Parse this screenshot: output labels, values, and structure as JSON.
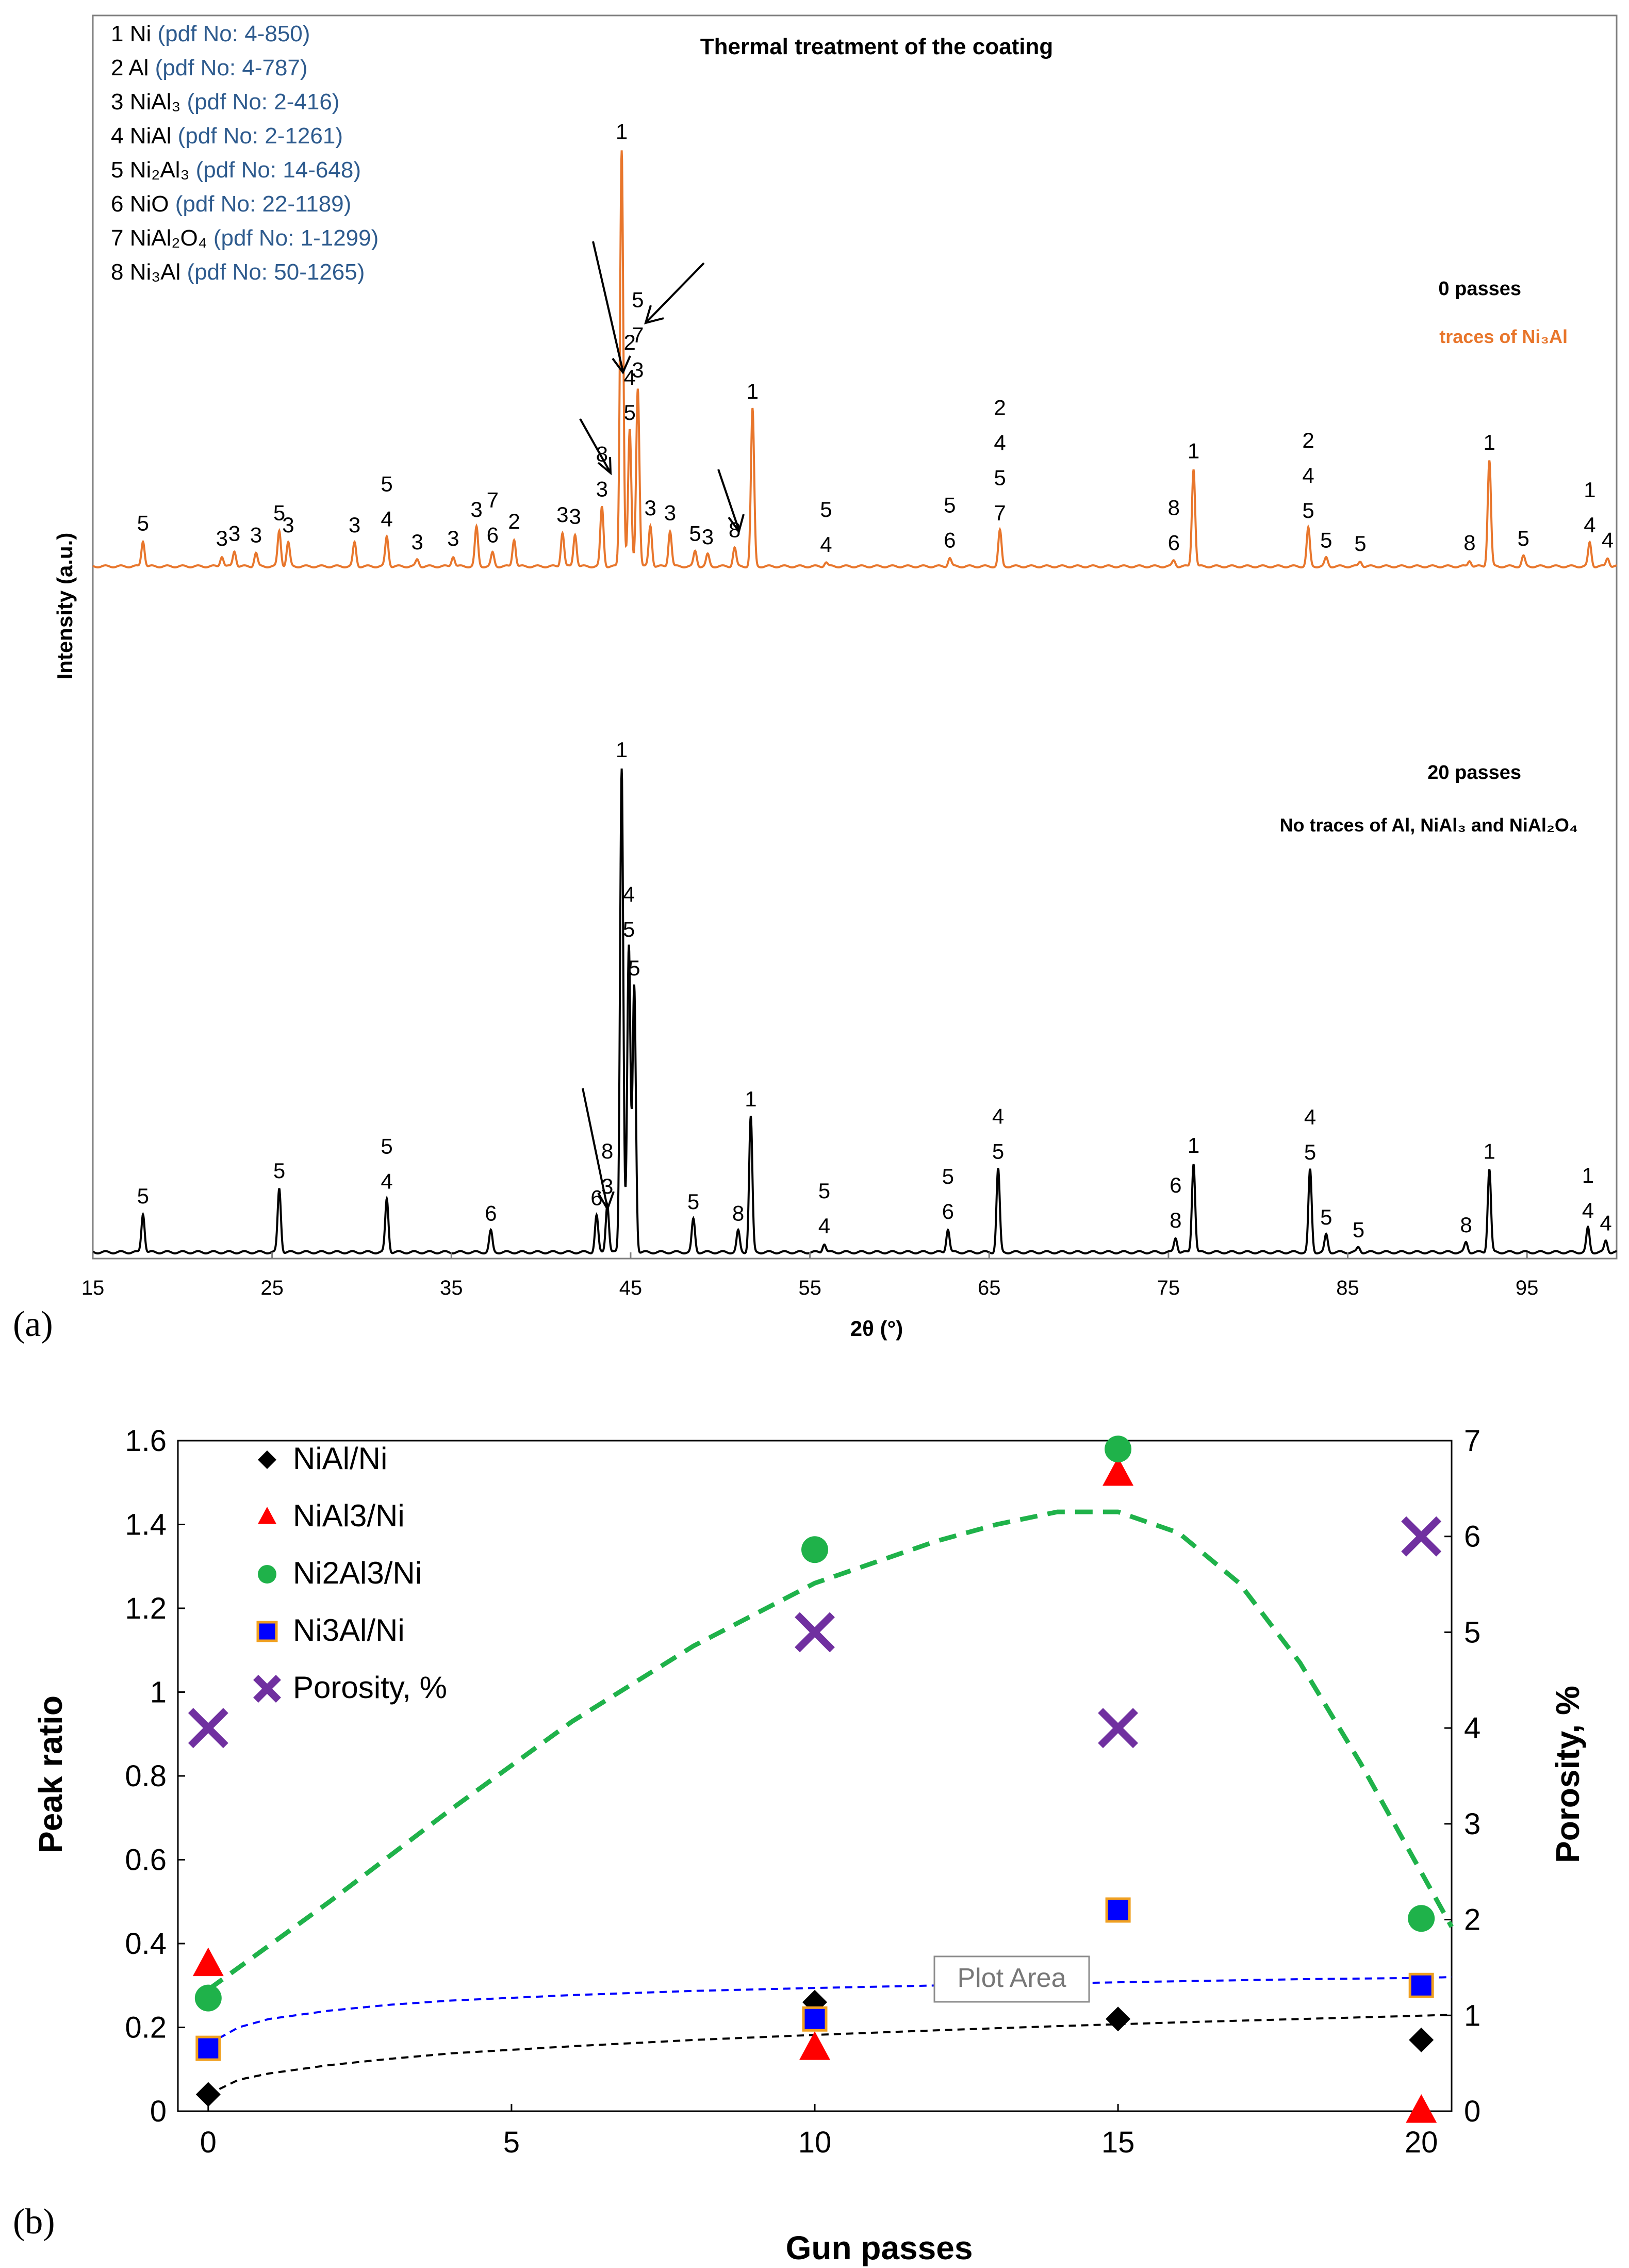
{
  "panel_a": {
    "label": "(a)",
    "title": "Thermal treatment of the coating",
    "xlabel": "2θ (°)",
    "ylabel": "Intensity (a.u.)",
    "xticks": [
      "15",
      "25",
      "35",
      "45",
      "55",
      "65",
      "75",
      "85",
      "95"
    ],
    "legend": [
      {
        "num": "1",
        "phase": "Ni",
        "pdf": "(pdf No: 4-850)"
      },
      {
        "num": "2",
        "phase": "Al",
        "pdf": "(pdf No: 4-787)"
      },
      {
        "num": "3",
        "phase": "NiAl₃",
        "pdf": "(pdf No: 2-416)"
      },
      {
        "num": "4",
        "phase": "NiAl",
        "pdf": "(pdf No: 2-1261)"
      },
      {
        "num": "5",
        "phase": "Ni₂Al₃",
        "pdf": "(pdf No: 14-648)"
      },
      {
        "num": "6",
        "phase": "NiO",
        "pdf": "(pdf No: 22-1189)"
      },
      {
        "num": "7",
        "phase": "NiAl₂O₄",
        "pdf": "(pdf No: 1-1299)"
      },
      {
        "num": "8",
        "phase": "Ni₃Al",
        "pdf": "(pdf No: 50-1265)"
      }
    ],
    "pattern0_label": "0 passes",
    "pattern0_note": "traces of  Ni₃Al",
    "pattern20_label": "20 passes",
    "pattern20_note": "No traces of Al, NiAl₃ and NiAl₂O₄"
  },
  "panel_b": {
    "label": "(b)",
    "tooltip": "Plot Area"
  },
  "colors": {
    "orange": "#e8762c",
    "black": "#000000",
    "legend_blue": "#2e5b8e",
    "green": "#1fb24a",
    "red": "#ff0000",
    "blue": "#0000ff",
    "purple": "#7030a0"
  },
  "chart_data": [
    {
      "type": "line",
      "title": "Thermal treatment of the coating",
      "xlabel": "2θ (°)",
      "ylabel": "Intensity (a.u.)",
      "xlim": [
        15,
        100
      ],
      "series": [
        {
          "name": "0 passes",
          "color": "#e8762c",
          "peaks": [
            {
              "x": 17.8,
              "h": 0.3,
              "label": "5"
            },
            {
              "x": 22.2,
              "h": 0.12,
              "label": "3"
            },
            {
              "x": 22.9,
              "h": 0.18,
              "label": "3"
            },
            {
              "x": 24.1,
              "h": 0.16,
              "label": "3"
            },
            {
              "x": 25.4,
              "h": 0.42,
              "label": "5"
            },
            {
              "x": 25.9,
              "h": 0.28,
              "label": "3"
            },
            {
              "x": 29.6,
              "h": 0.28,
              "label": "3"
            },
            {
              "x": 31.4,
              "h": 0.35,
              "label": "5 4"
            },
            {
              "x": 33.1,
              "h": 0.08,
              "label": "3"
            },
            {
              "x": 35.1,
              "h": 0.12,
              "label": "3"
            },
            {
              "x": 36.4,
              "h": 0.46,
              "label": "3"
            },
            {
              "x": 37.3,
              "h": 0.16,
              "label": "7 6"
            },
            {
              "x": 38.5,
              "h": 0.32,
              "label": "2"
            },
            {
              "x": 41.2,
              "h": 0.4,
              "label": "3"
            },
            {
              "x": 41.9,
              "h": 0.38,
              "label": "3"
            },
            {
              "x": 43.4,
              "h": 0.7,
              "label": "8 3"
            },
            {
              "x": 44.5,
              "h": 4.9,
              "label": "1"
            },
            {
              "x": 44.95,
              "h": 1.6,
              "label": "2 4 5"
            },
            {
              "x": 45.4,
              "h": 2.1,
              "label": "5 7 3"
            },
            {
              "x": 46.1,
              "h": 0.48,
              "label": "3"
            },
            {
              "x": 47.2,
              "h": 0.42,
              "label": "3"
            },
            {
              "x": 48.6,
              "h": 0.18,
              "label": "5"
            },
            {
              "x": 49.3,
              "h": 0.14,
              "label": "3"
            },
            {
              "x": 50.8,
              "h": 0.22,
              "label": "8"
            },
            {
              "x": 51.8,
              "h": 1.85,
              "label": "1"
            },
            {
              "x": 55.9,
              "h": 0.05,
              "label": "5 4"
            },
            {
              "x": 62.8,
              "h": 0.1,
              "label": "5 6"
            },
            {
              "x": 65.6,
              "h": 0.42,
              "label": "2 4 5 7"
            },
            {
              "x": 75.3,
              "h": 0.07,
              "label": "8 6"
            },
            {
              "x": 76.4,
              "h": 1.15,
              "label": "1"
            },
            {
              "x": 82.8,
              "h": 0.45,
              "label": "2 4 5"
            },
            {
              "x": 83.8,
              "h": 0.1,
              "label": "5"
            },
            {
              "x": 85.7,
              "h": 0.06,
              "label": "5"
            },
            {
              "x": 91.8,
              "h": 0.07,
              "label": "8"
            },
            {
              "x": 92.9,
              "h": 1.25,
              "label": "1"
            },
            {
              "x": 94.8,
              "h": 0.12,
              "label": "5"
            },
            {
              "x": 98.5,
              "h": 0.28,
              "label": "1 4"
            },
            {
              "x": 99.5,
              "h": 0.1,
              "label": "4"
            }
          ]
        },
        {
          "name": "20 passes",
          "color": "#000000",
          "peaks": [
            {
              "x": 17.8,
              "h": 0.4,
              "label": "5"
            },
            {
              "x": 25.4,
              "h": 0.66,
              "label": "5"
            },
            {
              "x": 31.4,
              "h": 0.55,
              "label": "5 4"
            },
            {
              "x": 37.2,
              "h": 0.22,
              "label": "6"
            },
            {
              "x": 43.1,
              "h": 0.38,
              "label": "6"
            },
            {
              "x": 43.7,
              "h": 0.5,
              "label": "8 3"
            },
            {
              "x": 44.5,
              "h": 5.0,
              "label": "1"
            },
            {
              "x": 44.9,
              "h": 3.15,
              "label": "4 5"
            },
            {
              "x": 45.2,
              "h": 2.75,
              "label": "5"
            },
            {
              "x": 48.5,
              "h": 0.34,
              "label": "5"
            },
            {
              "x": 51.0,
              "h": 0.22,
              "label": "8"
            },
            {
              "x": 51.7,
              "h": 1.4,
              "label": "1"
            },
            {
              "x": 55.8,
              "h": 0.09,
              "label": "5 4"
            },
            {
              "x": 62.7,
              "h": 0.24,
              "label": "5 6"
            },
            {
              "x": 65.5,
              "h": 0.86,
              "label": "4 5"
            },
            {
              "x": 75.4,
              "h": 0.15,
              "label": "6 8"
            },
            {
              "x": 76.4,
              "h": 0.92,
              "label": "1"
            },
            {
              "x": 82.9,
              "h": 0.85,
              "label": "4 5"
            },
            {
              "x": 83.8,
              "h": 0.18,
              "label": "5"
            },
            {
              "x": 85.6,
              "h": 0.05,
              "label": "5"
            },
            {
              "x": 91.6,
              "h": 0.1,
              "label": "8"
            },
            {
              "x": 92.9,
              "h": 0.86,
              "label": "1"
            },
            {
              "x": 98.4,
              "h": 0.25,
              "label": "1 4"
            },
            {
              "x": 99.4,
              "h": 0.12,
              "label": "4"
            }
          ]
        }
      ]
    },
    {
      "type": "scatter",
      "title": "",
      "xlabel": "Gun passes",
      "ylabel": "Peak ratio",
      "y2label": "Porosity, %",
      "xlim": [
        -0.5,
        20.5
      ],
      "ylim": [
        0,
        1.6
      ],
      "y2lim": [
        0,
        7
      ],
      "xticks": [
        0,
        5,
        10,
        15,
        20
      ],
      "yticks": [
        0,
        0.2,
        0.4,
        0.6,
        0.8,
        1,
        1.2,
        1.4,
        1.6
      ],
      "y2ticks": [
        0,
        1,
        2,
        3,
        4,
        5,
        6,
        7
      ],
      "series": [
        {
          "name": "NiAl/Ni",
          "marker": "diamond",
          "color": "#000000",
          "axis": "left",
          "x": [
            0,
            10,
            15,
            20
          ],
          "y": [
            0.04,
            0.26,
            0.22,
            0.17
          ]
        },
        {
          "name": "NiAl3/Ni",
          "marker": "triangle",
          "color": "#ff0000",
          "axis": "left",
          "x": [
            0,
            10,
            15,
            20
          ],
          "y": [
            0.35,
            0.15,
            1.52,
            0.0
          ]
        },
        {
          "name": "Ni2Al3/Ni",
          "marker": "circle",
          "color": "#1fb24a",
          "axis": "left",
          "x": [
            0,
            10,
            15,
            20
          ],
          "y": [
            0.27,
            1.34,
            1.58,
            0.46
          ]
        },
        {
          "name": "Ni3Al/Ni",
          "marker": "square",
          "color": "#0000ff",
          "axis": "left",
          "x": [
            0,
            10,
            15,
            20
          ],
          "y": [
            0.15,
            0.22,
            0.48,
            0.3
          ]
        },
        {
          "name": "Porosity, %",
          "marker": "x",
          "color": "#7030a0",
          "axis": "right",
          "x": [
            0,
            10,
            15,
            20
          ],
          "y": [
            4,
            5,
            4,
            6
          ]
        }
      ],
      "trendlines": [
        {
          "name": "Ni2Al3/Ni trend",
          "color": "#1fb24a",
          "style": "dashed",
          "x": [
            0,
            2,
            4,
            6,
            8,
            10,
            12,
            13,
            14,
            15,
            16,
            17,
            18,
            19,
            20,
            20.5
          ],
          "y": [
            0.29,
            0.5,
            0.72,
            0.93,
            1.11,
            1.26,
            1.36,
            1.4,
            1.43,
            1.43,
            1.38,
            1.26,
            1.07,
            0.83,
            0.57,
            0.44
          ]
        },
        {
          "name": "Ni3Al/Ni trend",
          "color": "#0000ff",
          "style": "dashed",
          "x": [
            0,
            0.5,
            1,
            2,
            3,
            4,
            6,
            8,
            10,
            12,
            14,
            16,
            18,
            20,
            20.5
          ],
          "y": [
            0.16,
            0.2,
            0.22,
            0.24,
            0.254,
            0.264,
            0.277,
            0.287,
            0.294,
            0.3,
            0.305,
            0.31,
            0.315,
            0.318,
            0.32
          ]
        },
        {
          "name": "NiAl/Ni trend",
          "color": "#000000",
          "style": "dashed",
          "x": [
            0,
            0.5,
            1,
            2,
            3,
            4,
            6,
            8,
            10,
            12,
            14,
            16,
            18,
            20,
            20.5
          ],
          "y": [
            0.04,
            0.075,
            0.09,
            0.11,
            0.125,
            0.138,
            0.155,
            0.17,
            0.182,
            0.193,
            0.203,
            0.212,
            0.22,
            0.228,
            0.23
          ]
        }
      ]
    }
  ]
}
